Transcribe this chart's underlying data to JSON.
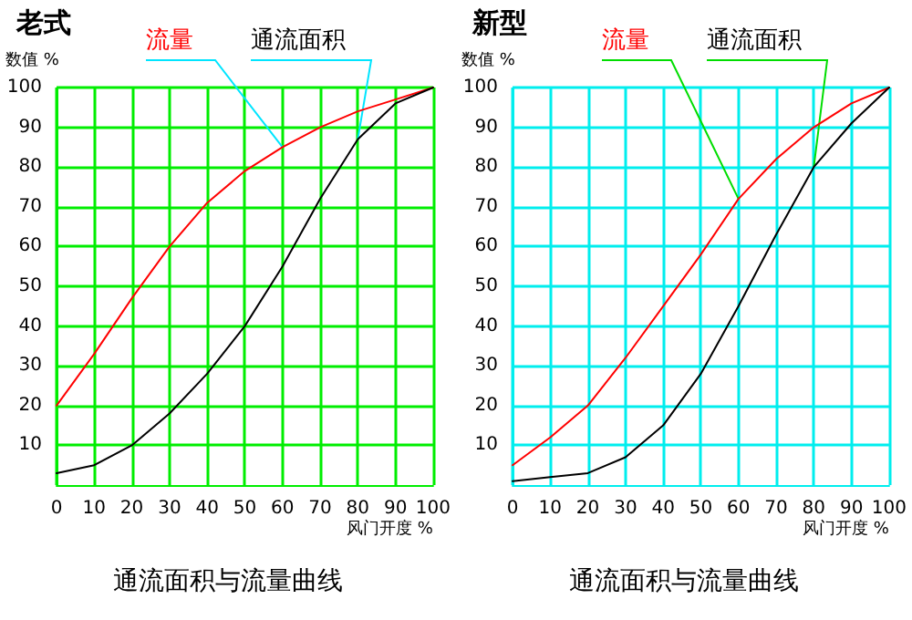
{
  "chart_data": [
    {
      "type": "line",
      "title": "老式",
      "ylabel": "数值 %",
      "xlabel": "风门开度 %",
      "annotations": [
        "通流面积与流量曲线"
      ],
      "x": [
        0,
        10,
        20,
        30,
        40,
        50,
        60,
        70,
        80,
        90,
        100
      ],
      "series": [
        {
          "name": "流量",
          "color": "#ff0000",
          "values": [
            20,
            33,
            47,
            60,
            71,
            79,
            85,
            90,
            94,
            97,
            100
          ]
        },
        {
          "name": "通流面积",
          "color": "#000000",
          "values": [
            3,
            5,
            10,
            18,
            28,
            40,
            55,
            72,
            87,
            96,
            100
          ]
        }
      ],
      "xlim": [
        0,
        100
      ],
      "xticks": [
        0,
        10,
        20,
        30,
        40,
        50,
        60,
        70,
        80,
        90,
        100
      ],
      "ylim": [
        0,
        100
      ],
      "yticks": [
        10,
        20,
        30,
        40,
        50,
        60,
        70,
        80,
        90,
        100
      ],
      "grid": true,
      "legend": false,
      "marker": "none",
      "line_style": "solid"
    },
    {
      "type": "line",
      "title": "新型",
      "ylabel": "数值 %",
      "xlabel": "风门开度 %",
      "annotations": [
        "通流面积与流量曲线"
      ],
      "x": [
        0,
        10,
        20,
        30,
        40,
        50,
        60,
        70,
        80,
        90,
        100
      ],
      "series": [
        {
          "name": "流量",
          "color": "#ff0000",
          "values": [
            5,
            12,
            20,
            32,
            45,
            58,
            72,
            82,
            90,
            96,
            100
          ]
        },
        {
          "name": "通流面积",
          "color": "#000000",
          "values": [
            1,
            2,
            3,
            7,
            15,
            28,
            45,
            63,
            80,
            91,
            100
          ]
        }
      ],
      "xlim": [
        0,
        100
      ],
      "xticks": [
        0,
        10,
        20,
        30,
        40,
        50,
        60,
        70,
        80,
        90,
        100
      ],
      "ylim": [
        0,
        100
      ],
      "yticks": [
        10,
        20,
        30,
        40,
        50,
        60,
        70,
        80,
        90,
        100
      ],
      "grid": true,
      "legend": false,
      "marker": "none",
      "line_style": "solid"
    }
  ]
}
